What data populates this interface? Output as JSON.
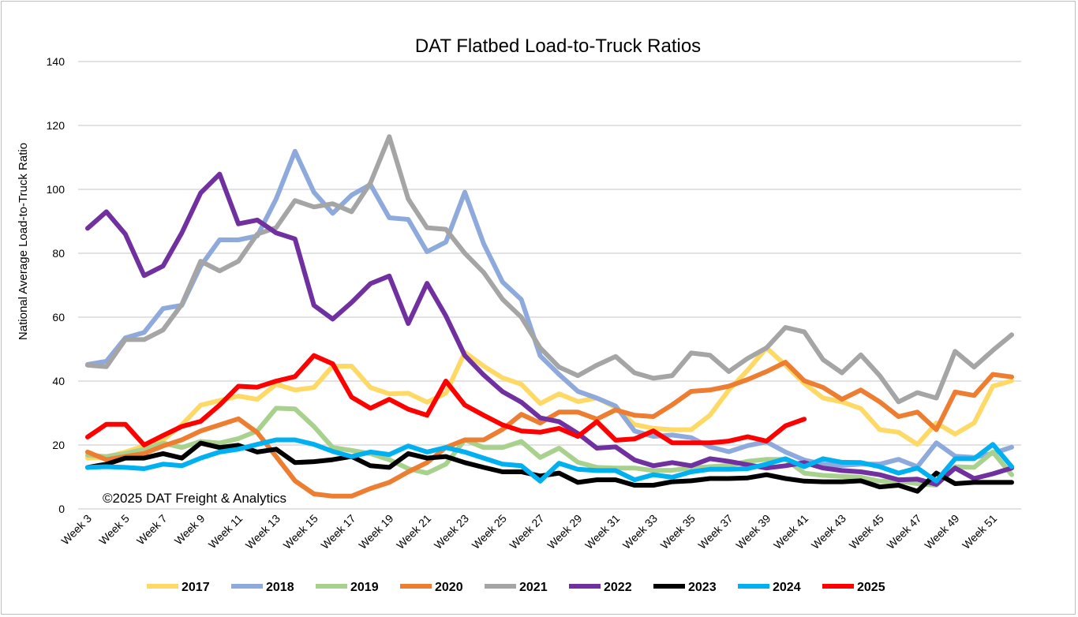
{
  "chart_data": {
    "type": "line",
    "title": "DAT Flatbed Load-to-Truck Ratios",
    "xlabel": "",
    "ylabel": "National Average Load-to-Truck Ratio",
    "ylim": [
      0,
      140
    ],
    "yticks": [
      0,
      20,
      40,
      60,
      80,
      100,
      120,
      140
    ],
    "grid": true,
    "legend_position": "bottom",
    "annotation": "©2025 DAT Freight & Analytics",
    "x_weeks": [
      3,
      4,
      5,
      6,
      7,
      8,
      9,
      10,
      11,
      12,
      13,
      14,
      15,
      16,
      17,
      18,
      19,
      20,
      21,
      22,
      23,
      24,
      25,
      26,
      27,
      28,
      29,
      30,
      31,
      32,
      33,
      34,
      35,
      36,
      37,
      38,
      39,
      40,
      41,
      42,
      43,
      44,
      45,
      46,
      47,
      48,
      49,
      50,
      51,
      52
    ],
    "tick_labels": [
      "Week 3",
      "Week 5",
      "Week 7",
      "Week 9",
      "Week 11",
      "Week 13",
      "Week 15",
      "Week 17",
      "Week 19",
      "Week 21",
      "Week 23",
      "Week 25",
      "Week 27",
      "Week 29",
      "Week 31",
      "Week 33",
      "Week 35",
      "Week 37",
      "Week 39",
      "Week 41",
      "Week 43",
      "Week 45",
      "Week 47",
      "Week 49",
      "Week 51"
    ],
    "series": [
      {
        "name": "2017",
        "color": "#FFD966",
        "values": [
          15.9,
          16.2,
          17.8,
          19.7,
          21.6,
          26.3,
          32.5,
          33.9,
          35.3,
          34.3,
          39,
          37.2,
          38,
          44.7,
          44.7,
          38,
          36,
          36.2,
          33.4,
          36.2,
          49,
          44.7,
          41,
          39,
          33,
          36,
          33.6,
          34.7,
          31.8,
          26.4,
          25.2,
          24.8,
          24.8,
          29.3,
          37.2,
          43.4,
          50.4,
          45,
          39.3,
          34.7,
          33.5,
          31.4,
          24.8,
          24,
          20.2,
          26.9,
          23.4,
          26.9,
          38.4,
          40.1
        ]
      },
      {
        "name": "2018",
        "color": "#8EA9DB",
        "values": [
          45.2,
          46.2,
          53.5,
          55.2,
          62.7,
          63.7,
          76,
          84.2,
          84.2,
          85.4,
          97,
          111.9,
          99.1,
          92.5,
          98.2,
          101.5,
          91.1,
          90.6,
          80.5,
          83.5,
          99.1,
          83,
          71,
          65.5,
          47.9,
          42.1,
          36.8,
          34.7,
          32.2,
          24.4,
          22.7,
          23.1,
          22.3,
          19.4,
          17.9,
          19.8,
          21,
          17.8,
          15.3,
          14,
          13.6,
          14,
          14,
          15.5,
          13.2,
          20.7,
          16.5,
          16.1,
          17.4,
          19.3
        ]
      },
      {
        "name": "2019",
        "color": "#A9D18E",
        "values": [
          16.8,
          16.4,
          17.3,
          18.7,
          20.6,
          19.2,
          21.1,
          20.6,
          22,
          24.4,
          31.5,
          31.3,
          25.8,
          19.2,
          18.3,
          17.3,
          15.4,
          12.6,
          11.2,
          14,
          21.6,
          19.2,
          19.2,
          21.1,
          16.1,
          19,
          14.6,
          13,
          12.8,
          12.8,
          12,
          12.1,
          12.8,
          13.2,
          13.6,
          14.9,
          15.5,
          15.5,
          11.2,
          10.5,
          10.2,
          9.9,
          8.7,
          8.7,
          7.9,
          7.4,
          13.2,
          13,
          17.8,
          10.7
        ]
      },
      {
        "name": "2020",
        "color": "#ED7D31",
        "values": [
          17.8,
          15.4,
          16.4,
          17.3,
          19.7,
          21.6,
          24.4,
          26.3,
          28.2,
          23.9,
          16.4,
          8.8,
          4.7,
          4,
          4,
          6.4,
          8.3,
          11.6,
          14.5,
          19.2,
          21.6,
          21.6,
          24.9,
          29.6,
          26.9,
          30.3,
          30.3,
          28.1,
          31,
          29.3,
          28.9,
          32.6,
          36.8,
          37.2,
          38.4,
          40.5,
          43,
          45.9,
          40.1,
          38,
          34.3,
          37.2,
          33.5,
          28.9,
          30.3,
          24.8,
          36.6,
          35.5,
          42.1,
          41.3
        ]
      },
      {
        "name": "2021",
        "color": "#A5A5A5",
        "values": [
          45,
          44.5,
          53,
          53,
          56,
          64,
          77.5,
          74.5,
          77.5,
          86,
          88,
          96.5,
          94.5,
          95.5,
          93,
          102,
          116.5,
          97,
          88,
          87.5,
          80,
          74,
          65.6,
          60,
          50.4,
          44.4,
          41.7,
          45,
          47.7,
          42.6,
          40.9,
          41.7,
          48.8,
          48.1,
          43,
          47.1,
          50.4,
          56.8,
          55.4,
          46.7,
          42.6,
          48.2,
          41.7,
          33.5,
          36.4,
          34.7,
          49.3,
          44.4,
          49.6,
          54.5
        ]
      },
      {
        "name": "2022",
        "color": "#7030A0",
        "values": [
          87.8,
          93,
          86,
          73,
          76,
          86.4,
          98.9,
          104.8,
          89.2,
          90.4,
          86.4,
          84.5,
          63.7,
          59.4,
          64.6,
          70.5,
          72.9,
          58,
          70.6,
          60.4,
          48,
          41.9,
          36.7,
          33.4,
          28.5,
          27.3,
          23.6,
          19,
          19.4,
          15.3,
          13.5,
          14.5,
          13.5,
          15.7,
          14.9,
          13.8,
          12.8,
          13.5,
          14.5,
          12.8,
          12,
          11.6,
          10.7,
          9.1,
          9.3,
          7.7,
          12.8,
          9.5,
          11,
          12.8
        ]
      },
      {
        "name": "2023",
        "color": "#000000",
        "values": [
          13,
          14,
          15.9,
          15.9,
          17.3,
          15.9,
          20.6,
          19.2,
          19.9,
          17.8,
          18.7,
          14.5,
          14.8,
          15.4,
          16.4,
          13.5,
          13,
          17.3,
          15.9,
          16.4,
          14.5,
          13,
          11.6,
          11.6,
          10.3,
          11.2,
          8.3,
          9.1,
          9.1,
          7.4,
          7.4,
          8.5,
          8.8,
          9.5,
          9.5,
          9.7,
          10.7,
          9.5,
          8.7,
          8.5,
          8.5,
          8.8,
          6.9,
          7.4,
          5.5,
          11.2,
          7.9,
          8.3,
          8.3,
          8.3
        ]
      },
      {
        "name": "2024",
        "color": "#00B0F0",
        "values": [
          13,
          13.2,
          13,
          12.6,
          14,
          13.5,
          15.9,
          17.8,
          18.7,
          20.2,
          21.6,
          21.6,
          20.2,
          18,
          16.4,
          17.8,
          17,
          19.7,
          17.8,
          19.2,
          17.8,
          15.9,
          14,
          13.5,
          8.7,
          14.3,
          12.4,
          12,
          12,
          9.1,
          10.7,
          9.9,
          11.6,
          12.4,
          12.4,
          12.6,
          14,
          15.7,
          13.2,
          15.7,
          14.6,
          14.5,
          13.2,
          11.2,
          12.8,
          8.7,
          15.7,
          15.7,
          20.2,
          13.2
        ]
      },
      {
        "name": "2025",
        "color": "#FF0000",
        "values": [
          22.5,
          26.5,
          26.5,
          20,
          23,
          25.8,
          27.4,
          32.5,
          38.4,
          38.1,
          40,
          41.4,
          48,
          45.4,
          35,
          31.5,
          34.3,
          31.2,
          29.3,
          40,
          32.5,
          29.3,
          26.3,
          24.4,
          24,
          25.2,
          22.7,
          27.3,
          21.5,
          21.9,
          24.4,
          20.7,
          20.7,
          20.7,
          21.2,
          22.6,
          21.2,
          26,
          28.1
        ]
      }
    ]
  }
}
